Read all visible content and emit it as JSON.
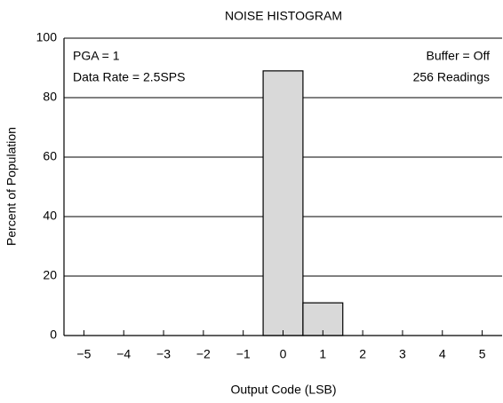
{
  "chart_data": {
    "type": "histogram",
    "title": "NOISE HISTOGRAM",
    "xlabel": "Output Code (LSB)",
    "ylabel": "Percent of Population",
    "annotations": [
      "PGA = 1",
      "Data Rate = 2.5SPS",
      "Buffer = Off",
      "256 Readings"
    ],
    "bins": [
      -5.5,
      -4.5,
      -3.5,
      -2.5,
      -1.5,
      -0.5,
      0.5,
      1.5,
      2.5,
      3.5,
      4.5,
      5.5
    ],
    "values": [
      0,
      0,
      0,
      0,
      0,
      89,
      11,
      0,
      0,
      0,
      0
    ],
    "color": "#d9d9d9",
    "xlim": [
      -5.5,
      5.5
    ],
    "xticks": [
      {
        "value": -5,
        "label": "−5"
      },
      {
        "value": -4,
        "label": "−4"
      },
      {
        "value": -3,
        "label": "−3"
      },
      {
        "value": -2,
        "label": "−2"
      },
      {
        "value": -1,
        "label": "−1"
      },
      0,
      1,
      2,
      3,
      4,
      5
    ],
    "ylim": [
      0,
      100
    ],
    "yticks": [
      0,
      20,
      40,
      60,
      80,
      100
    ],
    "grid": true
  }
}
